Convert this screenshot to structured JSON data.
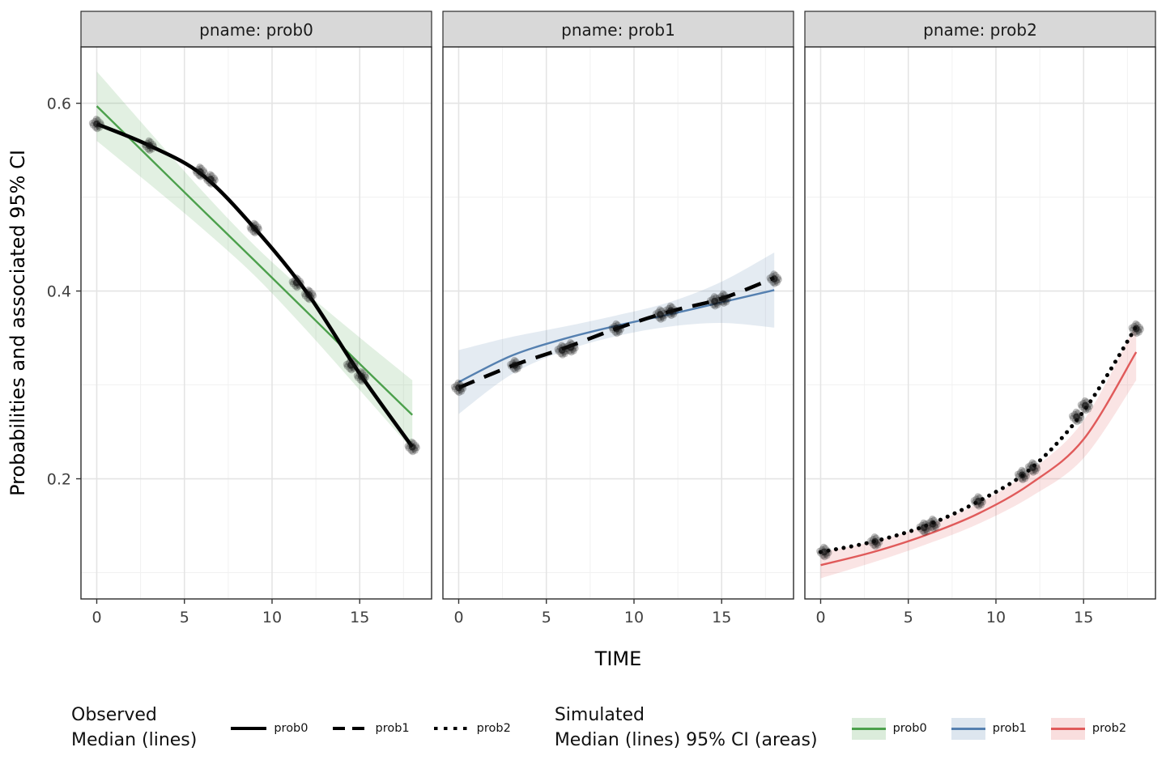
{
  "chart_data": {
    "type": "line",
    "title": "",
    "xlabel": "TIME",
    "ylabel": "Probabilities and associated 95% CI",
    "xticks": [
      0,
      5,
      10,
      15
    ],
    "yticks": [
      0.2,
      0.4,
      0.6
    ],
    "xminor": [
      2.5,
      7.5,
      12.5,
      17.5
    ],
    "yminor": [
      0.1,
      0.3,
      0.5
    ],
    "xlim": [
      -0.9,
      19.1
    ],
    "ylim": [
      0.072,
      0.66
    ],
    "grid": "on",
    "facets": [
      {
        "label": "pname: prob0",
        "observed": {
          "name": "prob0",
          "linetype": "solid",
          "x": [
            0,
            3,
            6,
            9,
            12,
            15,
            18
          ],
          "y": [
            0.578,
            0.555,
            0.524,
            0.467,
            0.398,
            0.312,
            0.234
          ]
        },
        "points": [
          [
            0,
            0.578
          ],
          [
            3,
            0.555
          ],
          [
            5.9,
            0.527
          ],
          [
            6.5,
            0.519
          ],
          [
            9,
            0.467
          ],
          [
            11.4,
            0.409
          ],
          [
            12.1,
            0.396
          ],
          [
            14.5,
            0.321
          ],
          [
            15.1,
            0.309
          ],
          [
            18,
            0.234
          ]
        ],
        "simulated": {
          "name": "prob0",
          "color": "#4CA04C",
          "x": [
            0,
            3,
            6,
            9,
            12,
            15,
            18
          ],
          "y": [
            0.597,
            0.542,
            0.487,
            0.4325,
            0.3775,
            0.3225,
            0.268
          ],
          "upper": [
            0.634,
            0.57,
            0.507,
            0.4485,
            0.3975,
            0.3505,
            0.305
          ],
          "lower": [
            0.56,
            0.514,
            0.467,
            0.4165,
            0.3575,
            0.2945,
            0.231
          ]
        }
      },
      {
        "label": "pname: prob1",
        "observed": {
          "name": "prob1",
          "linetype": "dashed",
          "x": [
            0,
            3,
            6,
            9,
            12,
            15,
            18
          ],
          "y": [
            0.297,
            0.32,
            0.339,
            0.36,
            0.378,
            0.392,
            0.414
          ]
        },
        "points": [
          [
            0,
            0.297
          ],
          [
            3.2,
            0.321
          ],
          [
            5.9,
            0.337
          ],
          [
            6.4,
            0.34
          ],
          [
            9,
            0.36
          ],
          [
            11.5,
            0.375
          ],
          [
            12.1,
            0.379
          ],
          [
            14.6,
            0.389
          ],
          [
            15.1,
            0.392
          ],
          [
            18,
            0.413
          ]
        ],
        "simulated": {
          "name": "prob1",
          "color": "#5580B0",
          "x": [
            0,
            3,
            6,
            9,
            12,
            15,
            18
          ],
          "y": [
            0.303,
            0.331,
            0.349,
            0.363,
            0.375,
            0.388,
            0.401
          ],
          "upper": [
            0.337,
            0.351,
            0.362,
            0.374,
            0.388,
            0.41,
            0.441
          ],
          "lower": [
            0.269,
            0.311,
            0.336,
            0.352,
            0.362,
            0.366,
            0.361
          ]
        }
      },
      {
        "label": "pname: prob2",
        "observed": {
          "name": "prob2",
          "linetype": "dotted",
          "x": [
            0,
            3,
            6,
            9,
            12,
            15,
            18
          ],
          "y": [
            0.122,
            0.133,
            0.15,
            0.176,
            0.211,
            0.272,
            0.362
          ]
        },
        "points": [
          [
            0.2,
            0.122
          ],
          [
            3.1,
            0.133
          ],
          [
            5.9,
            0.148
          ],
          [
            6.4,
            0.152
          ],
          [
            9,
            0.176
          ],
          [
            11.5,
            0.204
          ],
          [
            12.1,
            0.212
          ],
          [
            14.6,
            0.266
          ],
          [
            15.1,
            0.278
          ],
          [
            18,
            0.36
          ]
        ],
        "simulated": {
          "name": "prob2",
          "color": "#E05A5A",
          "x": [
            0,
            3,
            6,
            9,
            12,
            15,
            18
          ],
          "y": [
            0.108,
            0.122,
            0.14,
            0.163,
            0.195,
            0.242,
            0.335
          ],
          "upper": [
            0.122,
            0.133,
            0.15,
            0.174,
            0.209,
            0.262,
            0.365
          ],
          "lower": [
            0.094,
            0.111,
            0.13,
            0.152,
            0.181,
            0.222,
            0.305
          ]
        }
      }
    ]
  },
  "legend": {
    "observed": {
      "title_lines": [
        "Observed",
        "Median (lines)"
      ],
      "items": [
        {
          "label": "prob0",
          "pattern": "solid"
        },
        {
          "label": "prob1",
          "pattern": "dashed"
        },
        {
          "label": "prob2",
          "pattern": "dotted"
        }
      ]
    },
    "simulated": {
      "title_lines": [
        "Simulated",
        "Median (lines) 95% CI (areas)"
      ],
      "items": [
        {
          "label": "prob0",
          "color": "#4CA04C"
        },
        {
          "label": "prob1",
          "color": "#5580B0"
        },
        {
          "label": "prob2",
          "color": "#E05A5A"
        }
      ]
    }
  },
  "style": {
    "strip_fill": "#d8d8d8",
    "panel_border": "#2b2b2b",
    "grid_major": "#e4e4e4",
    "grid_minor": "#f1f1f1",
    "tick_label_color": "#404040",
    "observed_color": "#000000"
  }
}
